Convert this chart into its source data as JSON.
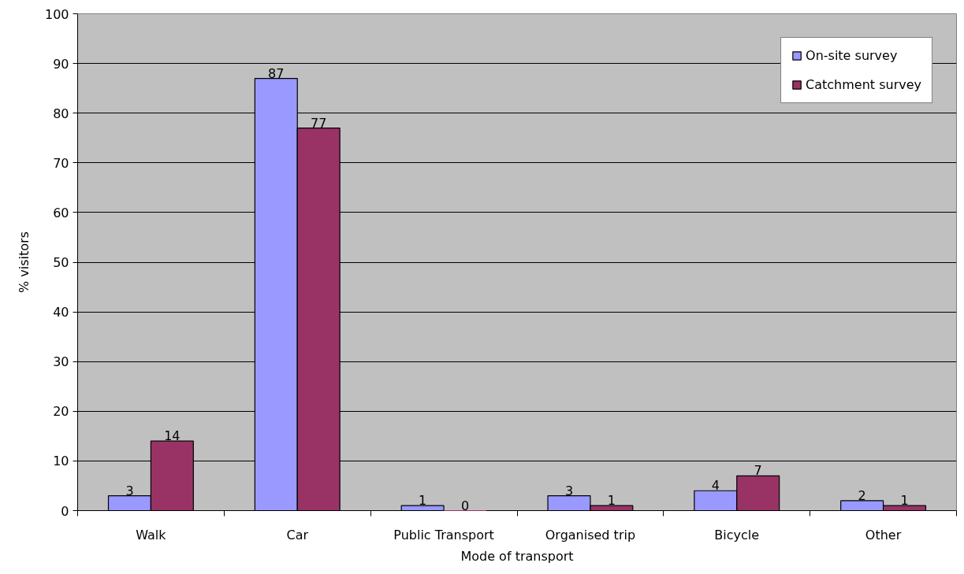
{
  "chart_data": {
    "type": "bar",
    "xlabel": "Mode of transport",
    "ylabel": "% visitors",
    "categories": [
      "Walk",
      "Car",
      "Public Transport",
      "Organised trip",
      "Bicycle",
      "Other"
    ],
    "series": [
      {
        "name": "On-site survey",
        "color": "#9999ff",
        "values": [
          3,
          87,
          1,
          3,
          4,
          2
        ]
      },
      {
        "name": "Catchment survey",
        "color": "#993366",
        "values": [
          14,
          77,
          0,
          1,
          7,
          1
        ]
      }
    ],
    "ylim": [
      0,
      100
    ],
    "yticks": [
      0,
      10,
      20,
      30,
      40,
      50,
      60,
      70,
      80,
      90,
      100
    ],
    "grid": "y",
    "legend": "top right",
    "data_labels": true
  }
}
